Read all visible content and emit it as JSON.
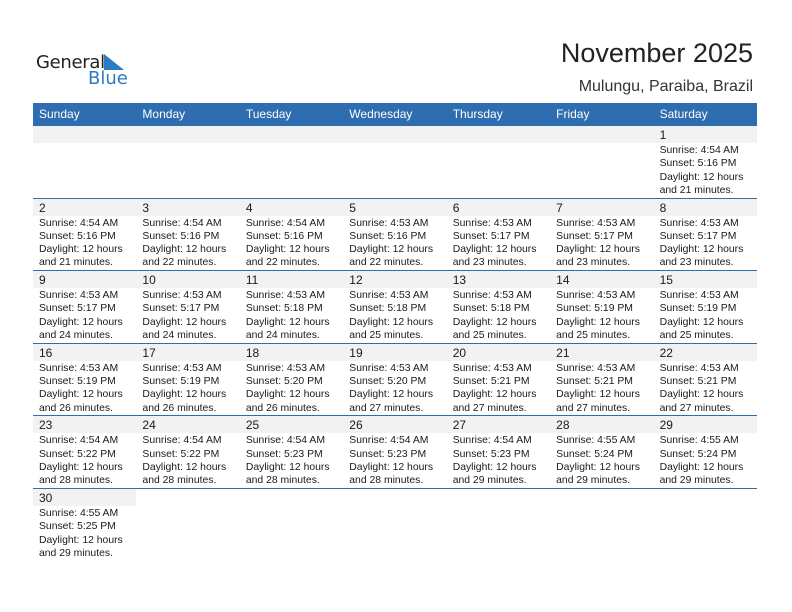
{
  "logo": {
    "line1": "General",
    "line2": "Blue"
  },
  "header": {
    "title": "November 2025",
    "location": "Mulungu, Paraiba, Brazil"
  },
  "colors": {
    "accent": "#2e6db0",
    "day_row": "#f2f2f2"
  },
  "weekdays": [
    "Sunday",
    "Monday",
    "Tuesday",
    "Wednesday",
    "Thursday",
    "Friday",
    "Saturday"
  ],
  "weeks": [
    [
      null,
      null,
      null,
      null,
      null,
      null,
      {
        "day": "1",
        "sunrise": "Sunrise: 4:54 AM",
        "sunset": "Sunset: 5:16 PM",
        "daylight": "Daylight: 12 hours",
        "minutes": "and 21 minutes."
      }
    ],
    [
      {
        "day": "2",
        "sunrise": "Sunrise: 4:54 AM",
        "sunset": "Sunset: 5:16 PM",
        "daylight": "Daylight: 12 hours",
        "minutes": "and 21 minutes."
      },
      {
        "day": "3",
        "sunrise": "Sunrise: 4:54 AM",
        "sunset": "Sunset: 5:16 PM",
        "daylight": "Daylight: 12 hours",
        "minutes": "and 22 minutes."
      },
      {
        "day": "4",
        "sunrise": "Sunrise: 4:54 AM",
        "sunset": "Sunset: 5:16 PM",
        "daylight": "Daylight: 12 hours",
        "minutes": "and 22 minutes."
      },
      {
        "day": "5",
        "sunrise": "Sunrise: 4:53 AM",
        "sunset": "Sunset: 5:16 PM",
        "daylight": "Daylight: 12 hours",
        "minutes": "and 22 minutes."
      },
      {
        "day": "6",
        "sunrise": "Sunrise: 4:53 AM",
        "sunset": "Sunset: 5:17 PM",
        "daylight": "Daylight: 12 hours",
        "minutes": "and 23 minutes."
      },
      {
        "day": "7",
        "sunrise": "Sunrise: 4:53 AM",
        "sunset": "Sunset: 5:17 PM",
        "daylight": "Daylight: 12 hours",
        "minutes": "and 23 minutes."
      },
      {
        "day": "8",
        "sunrise": "Sunrise: 4:53 AM",
        "sunset": "Sunset: 5:17 PM",
        "daylight": "Daylight: 12 hours",
        "minutes": "and 23 minutes."
      }
    ],
    [
      {
        "day": "9",
        "sunrise": "Sunrise: 4:53 AM",
        "sunset": "Sunset: 5:17 PM",
        "daylight": "Daylight: 12 hours",
        "minutes": "and 24 minutes."
      },
      {
        "day": "10",
        "sunrise": "Sunrise: 4:53 AM",
        "sunset": "Sunset: 5:17 PM",
        "daylight": "Daylight: 12 hours",
        "minutes": "and 24 minutes."
      },
      {
        "day": "11",
        "sunrise": "Sunrise: 4:53 AM",
        "sunset": "Sunset: 5:18 PM",
        "daylight": "Daylight: 12 hours",
        "minutes": "and 24 minutes."
      },
      {
        "day": "12",
        "sunrise": "Sunrise: 4:53 AM",
        "sunset": "Sunset: 5:18 PM",
        "daylight": "Daylight: 12 hours",
        "minutes": "and 25 minutes."
      },
      {
        "day": "13",
        "sunrise": "Sunrise: 4:53 AM",
        "sunset": "Sunset: 5:18 PM",
        "daylight": "Daylight: 12 hours",
        "minutes": "and 25 minutes."
      },
      {
        "day": "14",
        "sunrise": "Sunrise: 4:53 AM",
        "sunset": "Sunset: 5:19 PM",
        "daylight": "Daylight: 12 hours",
        "minutes": "and 25 minutes."
      },
      {
        "day": "15",
        "sunrise": "Sunrise: 4:53 AM",
        "sunset": "Sunset: 5:19 PM",
        "daylight": "Daylight: 12 hours",
        "minutes": "and 25 minutes."
      }
    ],
    [
      {
        "day": "16",
        "sunrise": "Sunrise: 4:53 AM",
        "sunset": "Sunset: 5:19 PM",
        "daylight": "Daylight: 12 hours",
        "minutes": "and 26 minutes."
      },
      {
        "day": "17",
        "sunrise": "Sunrise: 4:53 AM",
        "sunset": "Sunset: 5:19 PM",
        "daylight": "Daylight: 12 hours",
        "minutes": "and 26 minutes."
      },
      {
        "day": "18",
        "sunrise": "Sunrise: 4:53 AM",
        "sunset": "Sunset: 5:20 PM",
        "daylight": "Daylight: 12 hours",
        "minutes": "and 26 minutes."
      },
      {
        "day": "19",
        "sunrise": "Sunrise: 4:53 AM",
        "sunset": "Sunset: 5:20 PM",
        "daylight": "Daylight: 12 hours",
        "minutes": "and 27 minutes."
      },
      {
        "day": "20",
        "sunrise": "Sunrise: 4:53 AM",
        "sunset": "Sunset: 5:21 PM",
        "daylight": "Daylight: 12 hours",
        "minutes": "and 27 minutes."
      },
      {
        "day": "21",
        "sunrise": "Sunrise: 4:53 AM",
        "sunset": "Sunset: 5:21 PM",
        "daylight": "Daylight: 12 hours",
        "minutes": "and 27 minutes."
      },
      {
        "day": "22",
        "sunrise": "Sunrise: 4:53 AM",
        "sunset": "Sunset: 5:21 PM",
        "daylight": "Daylight: 12 hours",
        "minutes": "and 27 minutes."
      }
    ],
    [
      {
        "day": "23",
        "sunrise": "Sunrise: 4:54 AM",
        "sunset": "Sunset: 5:22 PM",
        "daylight": "Daylight: 12 hours",
        "minutes": "and 28 minutes."
      },
      {
        "day": "24",
        "sunrise": "Sunrise: 4:54 AM",
        "sunset": "Sunset: 5:22 PM",
        "daylight": "Daylight: 12 hours",
        "minutes": "and 28 minutes."
      },
      {
        "day": "25",
        "sunrise": "Sunrise: 4:54 AM",
        "sunset": "Sunset: 5:23 PM",
        "daylight": "Daylight: 12 hours",
        "minutes": "and 28 minutes."
      },
      {
        "day": "26",
        "sunrise": "Sunrise: 4:54 AM",
        "sunset": "Sunset: 5:23 PM",
        "daylight": "Daylight: 12 hours",
        "minutes": "and 28 minutes."
      },
      {
        "day": "27",
        "sunrise": "Sunrise: 4:54 AM",
        "sunset": "Sunset: 5:23 PM",
        "daylight": "Daylight: 12 hours",
        "minutes": "and 29 minutes."
      },
      {
        "day": "28",
        "sunrise": "Sunrise: 4:55 AM",
        "sunset": "Sunset: 5:24 PM",
        "daylight": "Daylight: 12 hours",
        "minutes": "and 29 minutes."
      },
      {
        "day": "29",
        "sunrise": "Sunrise: 4:55 AM",
        "sunset": "Sunset: 5:24 PM",
        "daylight": "Daylight: 12 hours",
        "minutes": "and 29 minutes."
      }
    ],
    [
      {
        "day": "30",
        "sunrise": "Sunrise: 4:55 AM",
        "sunset": "Sunset: 5:25 PM",
        "daylight": "Daylight: 12 hours",
        "minutes": "and 29 minutes."
      }
    ]
  ]
}
